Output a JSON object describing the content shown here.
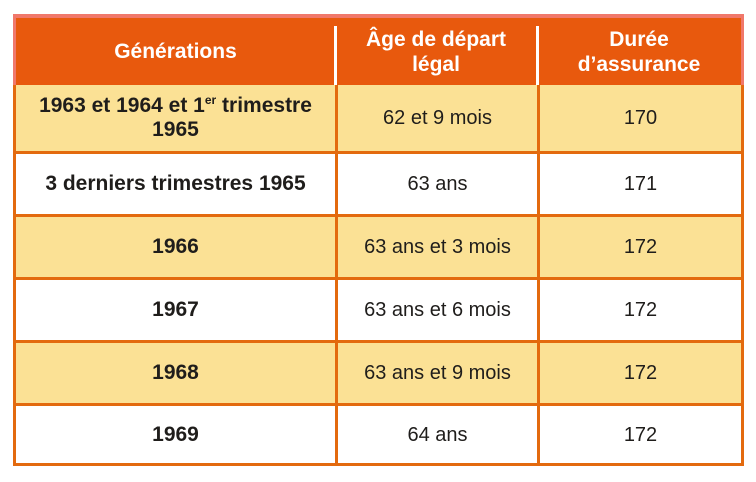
{
  "table": {
    "headers": [
      {
        "line1": "Générations",
        "line2": ""
      },
      {
        "line1": "Âge de départ",
        "line2": "légal"
      },
      {
        "line1": "Durée",
        "line2": "d’assurance"
      }
    ],
    "rows": [
      {
        "generation_parts": {
          "prefix": "1963 et 1964 et 1",
          "sup": "er",
          "suffix": " trimestre",
          "line2": "1965"
        },
        "age": "62 et 9 mois",
        "duration": "170",
        "highlighted": true
      },
      {
        "generation": "3 derniers trimestres 1965",
        "age": "63 ans",
        "duration": "171",
        "highlighted": false
      },
      {
        "generation": "1966",
        "age": "63 ans et 3 mois",
        "duration": "172",
        "highlighted": true
      },
      {
        "generation": "1967",
        "age": "63 ans et 6 mois",
        "duration": "172",
        "highlighted": false
      },
      {
        "generation": "1968",
        "age": "63 ans et 9 mois",
        "duration": "172",
        "highlighted": true
      },
      {
        "generation": "1969",
        "age": "64 ans",
        "duration": "172",
        "highlighted": false
      }
    ]
  },
  "colors": {
    "header_bg": "#E8590D",
    "header_outline": "#F0786B",
    "grid_border": "#E36A0E",
    "row_highlight_bg": "#FBE195",
    "row_bg": "#FFFFFF",
    "header_text": "#FFFFFF",
    "body_text": "#1F1D1B"
  }
}
